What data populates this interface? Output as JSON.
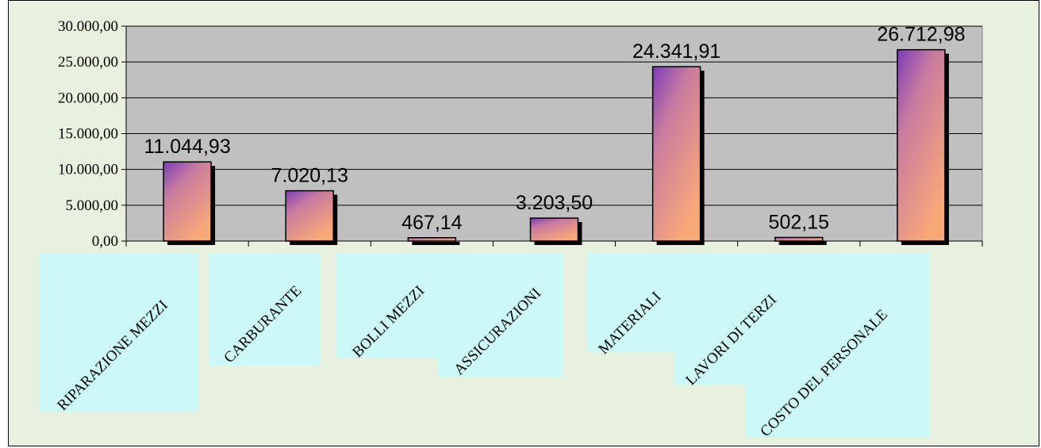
{
  "chart_data": {
    "type": "bar",
    "categories": [
      "RIPARAZIONE MEZZI",
      "CARBURANTE",
      "BOLLI MEZZI",
      "ASSICURAZIONI",
      "MATERIALI",
      "LAVORI DI TERZI",
      "COSTO DEL PERSONALE"
    ],
    "values": [
      11044.93,
      7020.13,
      467.14,
      3203.5,
      24341.91,
      502.15,
      26712.98
    ],
    "data_labels": [
      "11.044,93",
      "7.020,13",
      "467,14",
      "3.203,50",
      "24.341,91",
      "502,15",
      "26.712,98"
    ],
    "y_ticks": [
      "0,00",
      "5.000,00",
      "10.000,00",
      "15.000,00",
      "20.000,00",
      "25.000,00",
      "30.000,00"
    ],
    "ylim": [
      0,
      30000
    ],
    "grid": true,
    "legend": "none",
    "colors": {
      "plot_bg": "#c0c0c0",
      "frame_bg": "#e8f1df",
      "bar_light": "#f9a878",
      "bar_dark": "#7b3cb8",
      "label_bg": "#ccf8f8"
    }
  }
}
